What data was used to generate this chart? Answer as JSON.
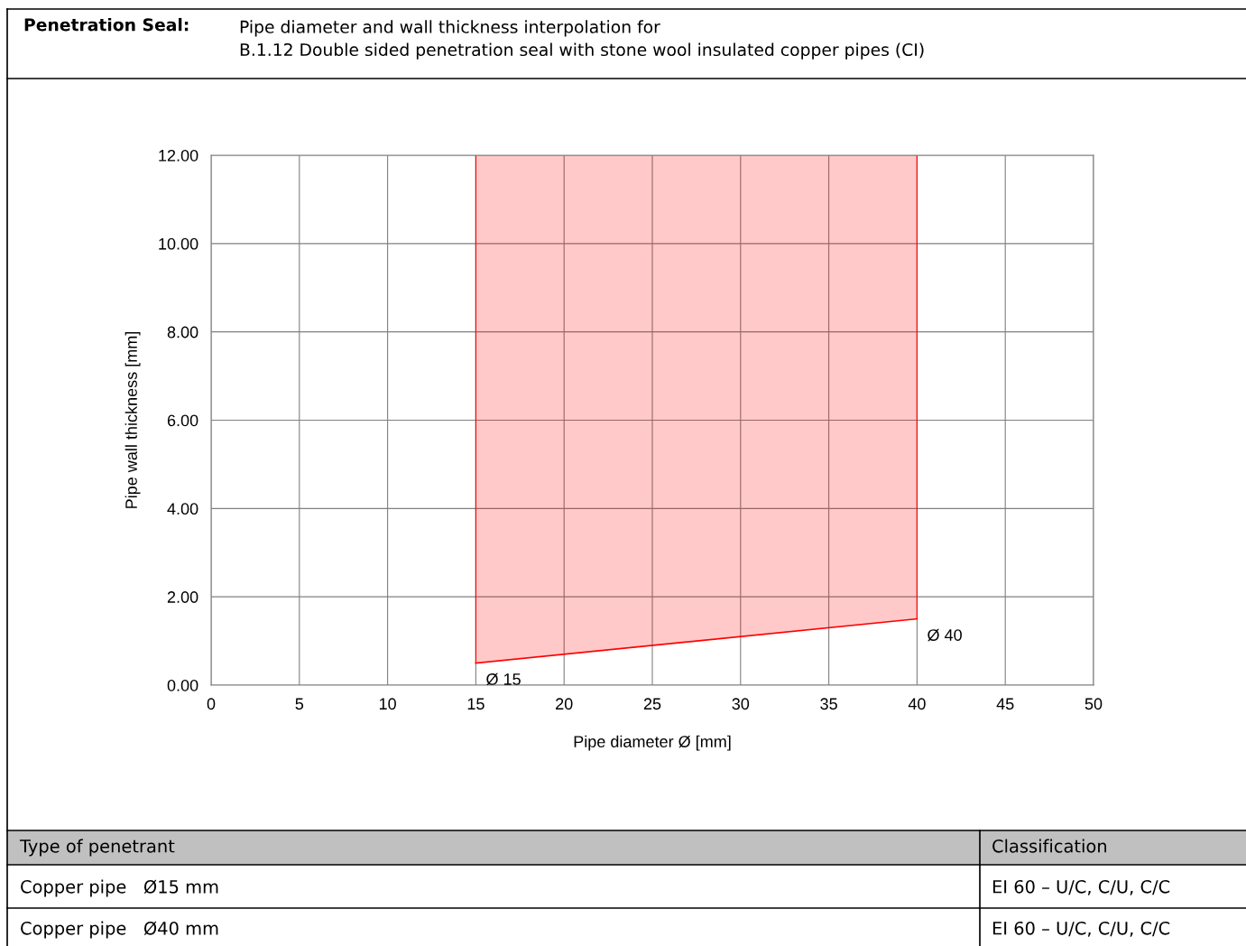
{
  "chart_data": {
    "type": "line",
    "title": "Penetration Seal:",
    "subtitle": "Pipe diameter and wall thickness interpolation for\nB.1.12 Double sided penetration seal with stone wool insulated copper pipes (CI)",
    "xlabel": "Pipe diameter Ø [mm]",
    "ylabel": "Pipe wall thickness [mm]",
    "series": [
      {
        "color": "#ff0000",
        "x": [
          15,
          40
        ],
        "values": [
          0.5,
          1.5
        ],
        "lower": [
          0.5,
          1.5
        ],
        "upper": [
          12,
          12
        ]
      }
    ],
    "xlim": [
      0,
      50
    ],
    "xticks": [
      0,
      5,
      10,
      15,
      20,
      25,
      30,
      35,
      40,
      45,
      50
    ],
    "ylim": [
      0,
      12
    ],
    "yticks": [
      {
        "value": 0,
        "label": "0.00"
      },
      {
        "value": 2,
        "label": "2.00"
      },
      {
        "value": 4,
        "label": "4.00"
      },
      {
        "value": 6,
        "label": "6.00"
      },
      {
        "value": 8,
        "label": "8.00"
      },
      {
        "value": 10,
        "label": "10.00"
      },
      {
        "value": 12,
        "label": "12.00"
      }
    ],
    "grid": true,
    "legend": false,
    "marker": "none",
    "line_style": "solid",
    "annotations": [
      {
        "text": "Ø 15",
        "x": 15,
        "y": 0.5
      },
      {
        "text": "Ø 40",
        "x": 40,
        "y": 1.5
      },
      "Type of penetrant",
      "Classification",
      "Copper pipe   Ø15 mm",
      "EI 60 – U/C, C/U, C/C",
      "Copper pipe   Ø40 mm",
      "EI 60 – U/C, C/U, C/C"
    ]
  }
}
